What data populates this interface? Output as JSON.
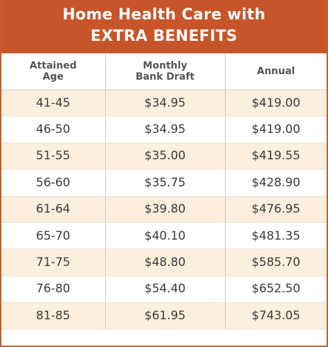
{
  "title": {
    "line1": "Home Health Care with",
    "line2": "EXTRA BENEFITS"
  },
  "columns": {
    "age": [
      "Attained",
      "Age"
    ],
    "monthly": [
      "Monthly",
      "Bank Draft"
    ],
    "annual": [
      "Annual"
    ]
  },
  "rows": [
    {
      "age": "41-45",
      "monthly": "$34.95",
      "annual": "$419.00"
    },
    {
      "age": "46-50",
      "monthly": "$34.95",
      "annual": "$419.00"
    },
    {
      "age": "51-55",
      "monthly": "$35.00",
      "annual": "$419.55"
    },
    {
      "age": "56-60",
      "monthly": "$35.75",
      "annual": "$428.90"
    },
    {
      "age": "61-64",
      "monthly": "$39.80",
      "annual": "$476.95"
    },
    {
      "age": "65-70",
      "monthly": "$40.10",
      "annual": "$481.35"
    },
    {
      "age": "71-75",
      "monthly": "$48.80",
      "annual": "$585.70"
    },
    {
      "age": "76-80",
      "monthly": "$54.40",
      "annual": "$652.50"
    },
    {
      "age": "81-85",
      "monthly": "$61.95",
      "annual": "$743.05"
    }
  ],
  "colors": {
    "banner": "#c8552a",
    "stripe": "#fcefde"
  }
}
